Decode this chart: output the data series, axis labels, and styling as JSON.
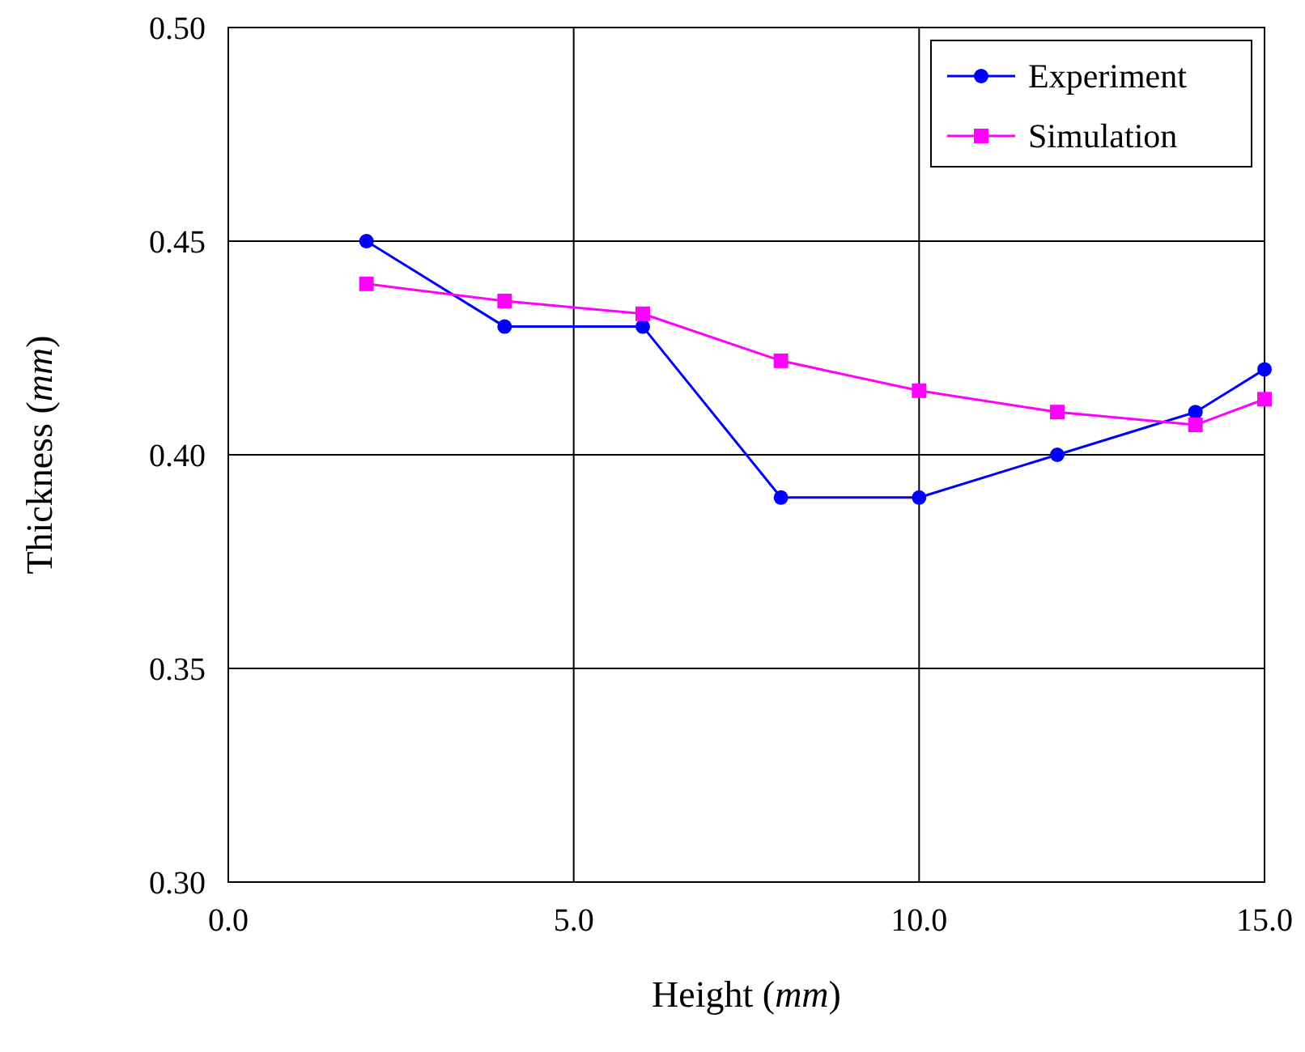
{
  "chart_data": {
    "type": "line",
    "xlabel": "Height (mm)",
    "ylabel": "Thickness (mm)",
    "xlim": [
      0,
      15
    ],
    "ylim": [
      0.3,
      0.5
    ],
    "xticks": [
      {
        "value": 0,
        "label": "0.0"
      },
      {
        "value": 5,
        "label": "5.0"
      },
      {
        "value": 10,
        "label": "10.0"
      },
      {
        "value": 15,
        "label": "15.0"
      }
    ],
    "yticks": [
      {
        "value": 0.3,
        "label": "0.30"
      },
      {
        "value": 0.35,
        "label": "0.35"
      },
      {
        "value": 0.4,
        "label": "0.40"
      },
      {
        "value": 0.45,
        "label": "0.45"
      },
      {
        "value": 0.5,
        "label": "0.50"
      }
    ],
    "grid": true,
    "legend": "top right",
    "line_style": "solid",
    "x": [
      2,
      4,
      6,
      8,
      10,
      12,
      14,
      15
    ],
    "series": [
      {
        "name": "Experiment",
        "color": "#0000ff",
        "marker": "circle",
        "values": [
          0.45,
          0.43,
          0.43,
          0.39,
          0.39,
          0.4,
          0.41,
          0.42
        ]
      },
      {
        "name": "Simulation",
        "color": "#ff00ff",
        "marker": "square",
        "values": [
          0.44,
          0.436,
          0.433,
          0.422,
          0.415,
          0.41,
          0.407,
          0.413
        ]
      }
    ]
  }
}
